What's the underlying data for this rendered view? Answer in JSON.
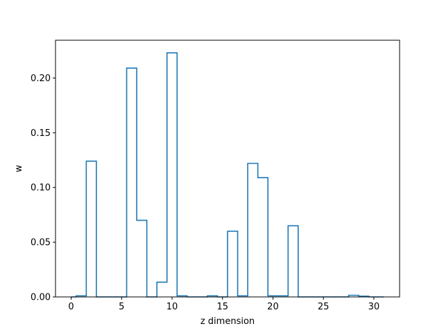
{
  "chart_data": {
    "type": "line",
    "style": "step-histogram",
    "title": "",
    "xlabel": "z dimension",
    "ylabel": "w",
    "xlim": [
      -1.55,
      32.55
    ],
    "ylim": [
      0.0,
      0.2345
    ],
    "x_ticks": [
      0,
      5,
      10,
      15,
      20,
      25,
      30
    ],
    "y_ticks": [
      0.0,
      0.05,
      0.1,
      0.15,
      0.2
    ],
    "x_tick_labels": [
      "0",
      "5",
      "10",
      "15",
      "20",
      "25",
      "30"
    ],
    "y_tick_labels": [
      "0.00",
      "0.05",
      "0.10",
      "0.15",
      "0.20"
    ],
    "grid": false,
    "line_color": "#1f77b4",
    "x": [
      0,
      1,
      2,
      3,
      4,
      5,
      6,
      7,
      8,
      9,
      10,
      11,
      12,
      13,
      14,
      15,
      16,
      17,
      18,
      19,
      20,
      21,
      22,
      23,
      24,
      25,
      26,
      27,
      28,
      29,
      30,
      31
    ],
    "values": [
      0.0,
      0.001,
      0.124,
      0.0,
      0.0,
      0.0,
      0.209,
      0.07,
      0.0,
      0.0135,
      0.223,
      0.001,
      0.0,
      0.0,
      0.001,
      0.0,
      0.06,
      0.001,
      0.122,
      0.109,
      0.001,
      0.001,
      0.065,
      0.0,
      0.0,
      0.0,
      0.0,
      0.0,
      0.0015,
      0.0007,
      0.0,
      0.0
    ]
  }
}
